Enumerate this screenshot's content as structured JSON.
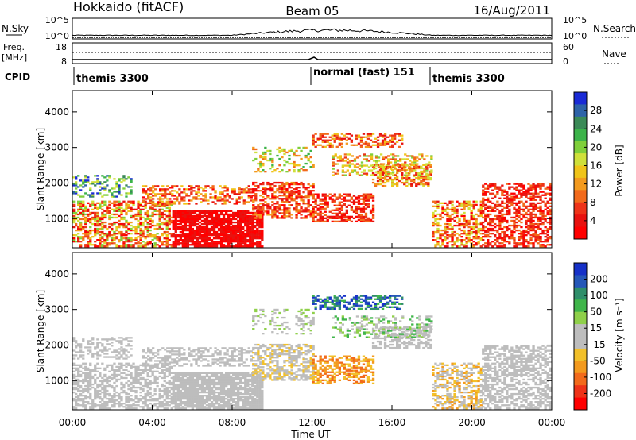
{
  "header": {
    "station": "Hokkaido (fitACF)",
    "beam": "Beam 05",
    "date": "16/Aug/2011"
  },
  "panels": {
    "nsky": {
      "label": "N.Sky",
      "ticks_left": [
        "10^5",
        "10^0"
      ],
      "ticks_right": [
        "10^5",
        "10^0"
      ],
      "right_label": "N.Search"
    },
    "freq": {
      "label_line1": "Freq.",
      "label_line2": "[MHz]",
      "ticks_left": [
        "18",
        "8"
      ],
      "ticks_right": [
        "60",
        "0"
      ],
      "right_label": "Nave"
    },
    "cpid": {
      "label": "CPID",
      "segments": [
        {
          "name": "themis 3300",
          "start_hour": 0
        },
        {
          "name": "normal (fast) 151",
          "start_hour": 12
        },
        {
          "name": "themis 3300",
          "start_hour": 18
        }
      ]
    }
  },
  "chart_data": [
    {
      "type": "heatmap",
      "title": "",
      "quantity": "Power",
      "xlabel": "",
      "ylabel": "Slant Range [km]",
      "x_ticks": [
        "00:00",
        "04:00",
        "08:00",
        "12:00",
        "16:00",
        "20:00",
        "00:00"
      ],
      "xlim_hours": [
        0,
        24
      ],
      "ylim": [
        180,
        4600
      ],
      "y_ticks": [
        1000,
        2000,
        3000,
        4000
      ],
      "colorbar": {
        "label": "Power [dB]",
        "ticks": [
          "4",
          "8",
          "12",
          "16",
          "20",
          "24",
          "28"
        ],
        "colors": [
          "#1a2bd6",
          "#2e63a8",
          "#3b8a57",
          "#3cb34a",
          "#7fcf3a",
          "#cfe03a",
          "#f0c419",
          "#f39a1e",
          "#f26a1b",
          "#ee3318",
          "#e8120f",
          "#ff0000"
        ]
      }
    },
    {
      "type": "heatmap",
      "title": "",
      "quantity": "Velocity",
      "xlabel": "Time UT",
      "ylabel": "Slant Range [km]",
      "x_ticks": [
        "00:00",
        "04:00",
        "08:00",
        "12:00",
        "16:00",
        "20:00",
        "00:00"
      ],
      "xlim_hours": [
        0,
        24
      ],
      "ylim": [
        180,
        4600
      ],
      "y_ticks": [
        1000,
        2000,
        3000,
        4000
      ],
      "colorbar": {
        "label": "Velocity [m s⁻¹]",
        "ticks": [
          "200",
          "100",
          "50",
          "15",
          "-15",
          "-50",
          "-100",
          "-200"
        ],
        "colors": [
          "#1631c8",
          "#2557b8",
          "#2f8e6a",
          "#3fb54a",
          "#8fd04a",
          "#bdbdbd",
          "#bdbdbd",
          "#f2c02a",
          "#f39a1e",
          "#f26a1b",
          "#ee3318",
          "#ff0000"
        ]
      }
    }
  ]
}
